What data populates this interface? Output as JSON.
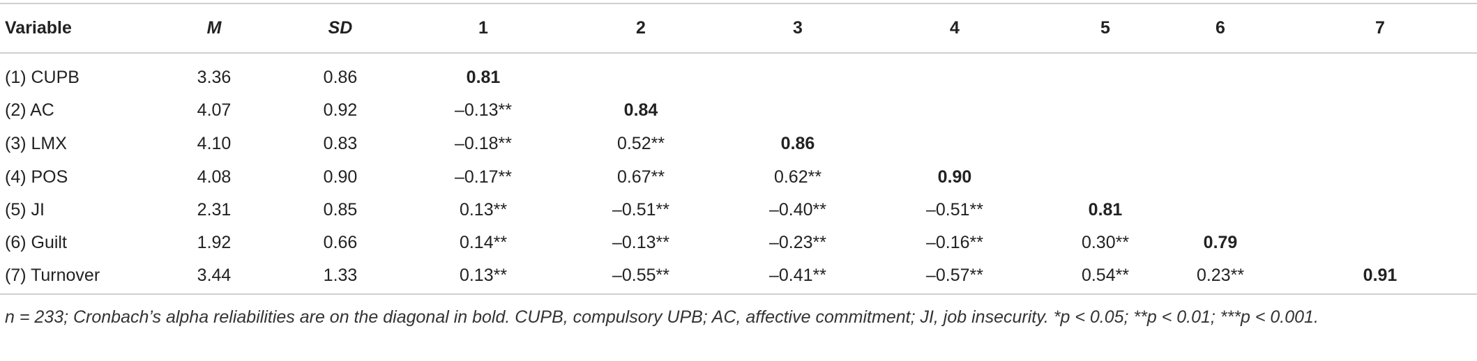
{
  "table": {
    "header": [
      "Variable",
      "M",
      "SD",
      "1",
      "2",
      "3",
      "4",
      "5",
      "6",
      "7"
    ],
    "rows": [
      [
        "(1) CUPB",
        "3.36",
        "0.86",
        "0.81"
      ],
      [
        "(2) AC",
        "4.07",
        "0.92",
        "–0.13**",
        "0.84"
      ],
      [
        "(3) LMX",
        "4.10",
        "0.83",
        "–0.18**",
        "0.52**",
        "0.86"
      ],
      [
        "(4) POS",
        "4.08",
        "0.90",
        "–0.17**",
        "0.67**",
        "0.62**",
        "0.90"
      ],
      [
        "(5) JI",
        "2.31",
        "0.85",
        "0.13**",
        "–0.51**",
        "–0.40**",
        "–0.51**",
        "0.81"
      ],
      [
        "(6) Guilt",
        "1.92",
        "0.66",
        "0.14**",
        "–0.13**",
        "–0.23**",
        "–0.16**",
        "0.30**",
        "0.79"
      ],
      [
        "(7) Turnover",
        "3.44",
        "1.33",
        "0.13**",
        "–0.55**",
        "–0.41**",
        "–0.57**",
        "0.54**",
        "0.23**",
        "0.91"
      ]
    ],
    "note": "n = 233; Cronbach’s alpha reliabilities are on the diagonal in bold. CUPB, compulsory UPB; AC, affective commitment; JI, job insecurity. *p < 0.05; **p < 0.01; ***p < 0.001."
  }
}
